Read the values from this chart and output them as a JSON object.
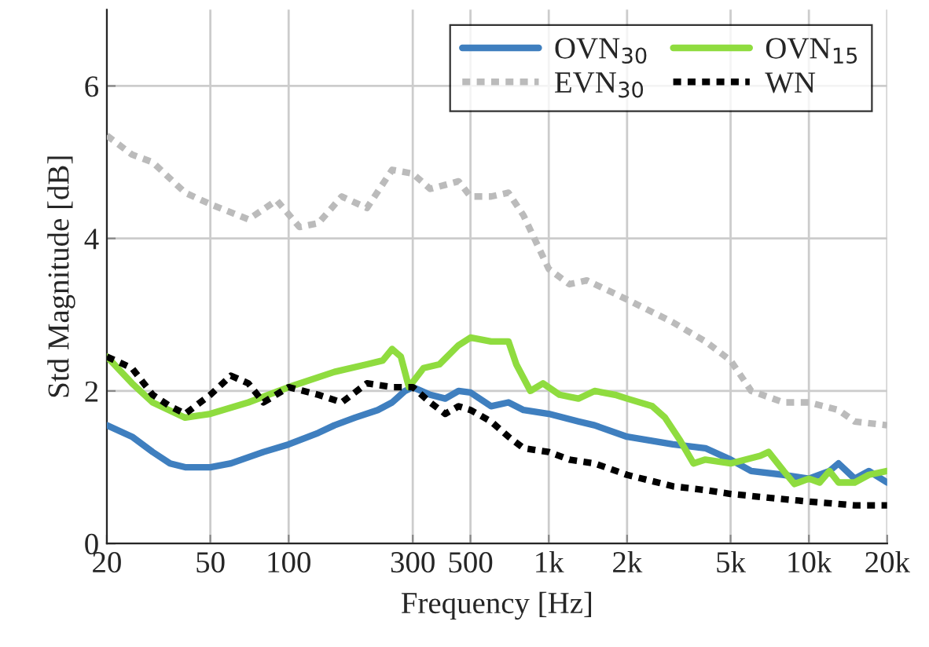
{
  "chart_data": {
    "type": "line",
    "xlabel": "Frequency [Hz]",
    "ylabel": "Std Magnitude [dB]",
    "log": "x",
    "xlim": [
      20,
      20000
    ],
    "ylim": [
      0,
      7
    ],
    "xticks": [
      20,
      50,
      100,
      300,
      500,
      {
        "value": 1000,
        "label": "1k"
      },
      {
        "value": 2000,
        "label": "2k"
      },
      {
        "value": 5000,
        "label": "5k"
      },
      {
        "value": 10000,
        "label": "10k"
      },
      {
        "value": 20000,
        "label": "20k"
      }
    ],
    "yticks": [
      0,
      2,
      4,
      6
    ],
    "grid": true,
    "legend": "top right",
    "series": [
      {
        "name": "OVN$_{30}$",
        "color": "#3f7fbf",
        "line_style": "solid",
        "x": [
          20,
          25,
          30,
          35,
          40,
          50,
          60,
          80,
          100,
          130,
          150,
          180,
          220,
          250,
          280,
          300,
          350,
          400,
          450,
          500,
          600,
          700,
          800,
          1000,
          1300,
          1500,
          2000,
          3000,
          4000,
          5000,
          6000,
          8000,
          10000,
          12000,
          13000,
          15000,
          17000,
          20000
        ],
        "values": [
          1.55,
          1.4,
          1.2,
          1.05,
          1.0,
          1.0,
          1.05,
          1.2,
          1.3,
          1.45,
          1.55,
          1.65,
          1.75,
          1.85,
          2.0,
          2.05,
          1.95,
          1.9,
          2.0,
          1.98,
          1.8,
          1.85,
          1.75,
          1.7,
          1.6,
          1.55,
          1.4,
          1.3,
          1.25,
          1.1,
          0.95,
          0.9,
          0.85,
          0.95,
          1.05,
          0.85,
          0.95,
          0.8
        ]
      },
      {
        "name": "OVN$_{15}$",
        "color": "#8fdc3f",
        "line_style": "solid",
        "x": [
          20,
          25,
          30,
          40,
          50,
          70,
          100,
          150,
          200,
          230,
          250,
          270,
          290,
          330,
          380,
          450,
          500,
          600,
          700,
          750,
          850,
          950,
          1100,
          1300,
          1500,
          1800,
          2000,
          2500,
          2800,
          3200,
          3600,
          4000,
          5000,
          6500,
          7000,
          8000,
          8800,
          10000,
          11000,
          12000,
          13000,
          15000,
          17000,
          20000
        ],
        "values": [
          2.45,
          2.1,
          1.85,
          1.65,
          1.7,
          1.85,
          2.05,
          2.25,
          2.35,
          2.4,
          2.55,
          2.45,
          2.05,
          2.3,
          2.35,
          2.6,
          2.7,
          2.65,
          2.65,
          2.35,
          2.0,
          2.1,
          1.95,
          1.9,
          2.0,
          1.95,
          1.9,
          1.8,
          1.65,
          1.35,
          1.05,
          1.1,
          1.05,
          1.15,
          1.2,
          0.95,
          0.78,
          0.85,
          0.8,
          0.95,
          0.8,
          0.8,
          0.9,
          0.95
        ]
      },
      {
        "name": "EVN$_{30}$",
        "color": "#bbbbbb",
        "line_style": "dashed",
        "x": [
          20,
          25,
          30,
          40,
          50,
          70,
          90,
          110,
          130,
          160,
          200,
          250,
          300,
          350,
          450,
          500,
          600,
          700,
          800,
          1000,
          1200,
          1400,
          2000,
          3000,
          4000,
          5000,
          6000,
          8000,
          10000,
          13000,
          15000,
          20000
        ],
        "values": [
          5.35,
          5.1,
          5.0,
          4.6,
          4.45,
          4.25,
          4.5,
          4.15,
          4.2,
          4.55,
          4.4,
          4.9,
          4.85,
          4.65,
          4.75,
          4.55,
          4.55,
          4.6,
          4.3,
          3.6,
          3.4,
          3.45,
          3.2,
          2.9,
          2.65,
          2.4,
          2.0,
          1.85,
          1.85,
          1.75,
          1.6,
          1.55
        ]
      },
      {
        "name": "WN",
        "color": "#000000",
        "line_style": "dashed",
        "x": [
          20,
          25,
          30,
          35,
          40,
          50,
          60,
          70,
          80,
          100,
          130,
          160,
          200,
          250,
          300,
          350,
          400,
          450,
          500,
          600,
          700,
          800,
          1000,
          1200,
          1500,
          2000,
          3000,
          4000,
          5000,
          7000,
          10000,
          15000,
          20000
        ],
        "values": [
          2.45,
          2.3,
          1.95,
          1.8,
          1.7,
          1.95,
          2.2,
          2.1,
          1.85,
          2.05,
          1.95,
          1.85,
          2.1,
          2.05,
          2.05,
          1.85,
          1.7,
          1.8,
          1.75,
          1.6,
          1.4,
          1.25,
          1.2,
          1.1,
          1.05,
          0.9,
          0.75,
          0.7,
          0.65,
          0.6,
          0.55,
          0.5,
          0.5
        ]
      }
    ]
  }
}
